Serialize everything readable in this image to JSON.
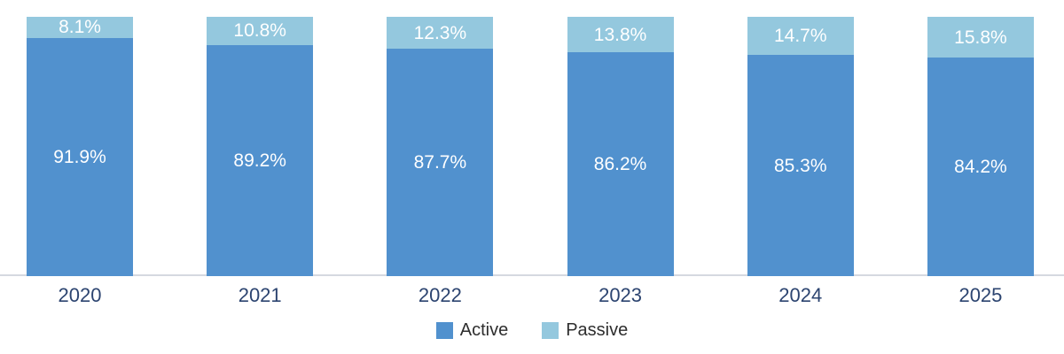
{
  "chart_data": {
    "type": "bar",
    "stacked": true,
    "stacked_percent": true,
    "title": "",
    "xlabel": "",
    "ylabel": "",
    "ylim": [
      0,
      100
    ],
    "grid": false,
    "legend_position": "bottom",
    "categories": [
      "2020",
      "2021",
      "2022",
      "2023",
      "2024",
      "2025"
    ],
    "series": [
      {
        "name": "Active",
        "color": "#5191ce",
        "values": [
          91.9,
          89.2,
          87.7,
          86.2,
          85.3,
          84.2
        ],
        "data_labels": [
          "91.9%",
          "89.2%",
          "87.7%",
          "86.2%",
          "85.3%",
          "84.2%"
        ]
      },
      {
        "name": "Passive",
        "color": "#94c8de",
        "values": [
          8.1,
          10.8,
          12.3,
          13.8,
          14.7,
          15.8
        ],
        "data_labels": [
          "8.1%",
          "10.8%",
          "12.3%",
          "13.8%",
          "14.7%",
          "15.8%"
        ]
      }
    ],
    "data_label_color": "#ffffff",
    "axis_label_color": "#2c4470",
    "axis_line_color": "#d5d9e0",
    "legend_text_color": "#2e2e2e",
    "background_color": "#ffffff"
  }
}
